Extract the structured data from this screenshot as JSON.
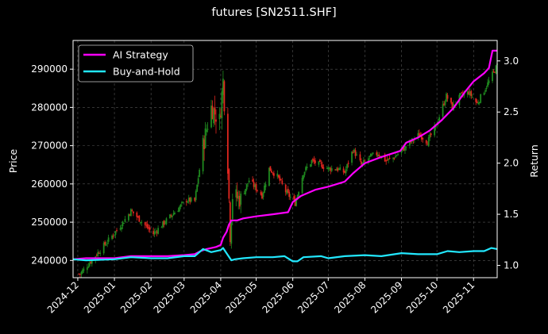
{
  "chart_data": {
    "type": "line",
    "title": "futures [SN2511.SHF]",
    "ylabel_left": "Price",
    "ylabel_right": "Return",
    "grid": true,
    "legend_position": "top-left",
    "x_start": "2024-11-27",
    "x_end": "2025-11-21",
    "ylim_left": [
      235500,
      297500
    ],
    "ylim_right": [
      0.88,
      3.2
    ],
    "xticks": [
      {
        "date": "2024-12-01",
        "label": "2024-12"
      },
      {
        "date": "2025-01-01",
        "label": "2025-01"
      },
      {
        "date": "2025-02-01",
        "label": "2025-02"
      },
      {
        "date": "2025-03-01",
        "label": "2025-03"
      },
      {
        "date": "2025-04-01",
        "label": "2025-04"
      },
      {
        "date": "2025-05-01",
        "label": "2025-05"
      },
      {
        "date": "2025-06-01",
        "label": "2025-06"
      },
      {
        "date": "2025-07-01",
        "label": "2025-07"
      },
      {
        "date": "2025-08-01",
        "label": "2025-08"
      },
      {
        "date": "2025-09-01",
        "label": "2025-09"
      },
      {
        "date": "2025-10-01",
        "label": "2025-10"
      },
      {
        "date": "2025-11-01",
        "label": "2025-11"
      }
    ],
    "yticks_left": [
      {
        "value": 240000,
        "label": "240000"
      },
      {
        "value": 250000,
        "label": "250000"
      },
      {
        "value": 260000,
        "label": "260000"
      },
      {
        "value": 270000,
        "label": "270000"
      },
      {
        "value": 280000,
        "label": "280000"
      },
      {
        "value": 290000,
        "label": "290000"
      }
    ],
    "yticks_right": [
      {
        "value": 1.0,
        "label": "1.0"
      },
      {
        "value": 1.5,
        "label": "1.5"
      },
      {
        "value": 2.0,
        "label": "2.0"
      },
      {
        "value": 2.5,
        "label": "2.5"
      },
      {
        "value": 3.0,
        "label": "3.0"
      }
    ],
    "candle_colors": {
      "up": "#1f8a1f",
      "down": "#e0261f"
    },
    "price_anchors": [
      [
        "2024-12-03",
        236500
      ],
      [
        "2025-01-06",
        249000
      ],
      [
        "2025-01-15",
        253000
      ],
      [
        "2025-02-03",
        247000
      ],
      [
        "2025-03-03",
        255800
      ],
      [
        "2025-03-10",
        255500
      ],
      [
        "2025-03-17",
        270000
      ],
      [
        "2025-03-24",
        280000
      ],
      [
        "2025-03-31",
        276500
      ],
      [
        "2025-04-03",
        287000
      ],
      [
        "2025-04-07",
        265000
      ],
      [
        "2025-04-09",
        247000
      ],
      [
        "2025-04-11",
        257000
      ],
      [
        "2025-04-18",
        256000
      ],
      [
        "2025-04-25",
        261000
      ],
      [
        "2025-05-06",
        257000
      ],
      [
        "2025-05-12",
        264000
      ],
      [
        "2025-05-19",
        262000
      ],
      [
        "2025-05-26",
        258000
      ],
      [
        "2025-06-03",
        255000
      ],
      [
        "2025-06-10",
        263000
      ],
      [
        "2025-06-17",
        266000
      ],
      [
        "2025-06-24",
        265000
      ],
      [
        "2025-07-01",
        264000
      ],
      [
        "2025-07-08",
        264000
      ],
      [
        "2025-07-15",
        263000
      ],
      [
        "2025-07-22",
        269000
      ],
      [
        "2025-07-29",
        265000
      ],
      [
        "2025-08-05",
        267000
      ],
      [
        "2025-08-12",
        268000
      ],
      [
        "2025-08-19",
        266000
      ],
      [
        "2025-08-26",
        267000
      ],
      [
        "2025-09-02",
        269000
      ],
      [
        "2025-09-09",
        271000
      ],
      [
        "2025-09-16",
        273000
      ],
      [
        "2025-09-23",
        271000
      ],
      [
        "2025-09-30",
        275000
      ],
      [
        "2025-10-09",
        283000
      ],
      [
        "2025-10-14",
        280000
      ],
      [
        "2025-10-21",
        283000
      ],
      [
        "2025-10-28",
        284000
      ],
      [
        "2025-11-04",
        281000
      ],
      [
        "2025-11-11",
        285000
      ],
      [
        "2025-11-21",
        291000
      ]
    ],
    "series": [
      {
        "name": "AI Strategy",
        "color": "#ff00ff",
        "points": [
          [
            "2024-11-27",
            1.06
          ],
          [
            "2024-12-08",
            1.07
          ],
          [
            "2025-01-01",
            1.07
          ],
          [
            "2025-01-15",
            1.09
          ],
          [
            "2025-02-15",
            1.09
          ],
          [
            "2025-03-01",
            1.1
          ],
          [
            "2025-03-10",
            1.11
          ],
          [
            "2025-03-15",
            1.14
          ],
          [
            "2025-03-20",
            1.16
          ],
          [
            "2025-03-28",
            1.18
          ],
          [
            "2025-04-01",
            1.2
          ],
          [
            "2025-04-03",
            1.27
          ],
          [
            "2025-04-06",
            1.33
          ],
          [
            "2025-04-08",
            1.4
          ],
          [
            "2025-04-10",
            1.44
          ],
          [
            "2025-04-15",
            1.44
          ],
          [
            "2025-04-20",
            1.46
          ],
          [
            "2025-05-01",
            1.48
          ],
          [
            "2025-05-15",
            1.5
          ],
          [
            "2025-05-28",
            1.52
          ],
          [
            "2025-06-01",
            1.62
          ],
          [
            "2025-06-08",
            1.68
          ],
          [
            "2025-06-20",
            1.74
          ],
          [
            "2025-07-01",
            1.77
          ],
          [
            "2025-07-15",
            1.82
          ],
          [
            "2025-07-22",
            1.9
          ],
          [
            "2025-08-01",
            2.0
          ],
          [
            "2025-08-15",
            2.06
          ],
          [
            "2025-08-31",
            2.12
          ],
          [
            "2025-09-05",
            2.2
          ],
          [
            "2025-09-15",
            2.25
          ],
          [
            "2025-09-25",
            2.32
          ],
          [
            "2025-10-05",
            2.42
          ],
          [
            "2025-10-15",
            2.54
          ],
          [
            "2025-10-25",
            2.7
          ],
          [
            "2025-11-01",
            2.8
          ],
          [
            "2025-11-10",
            2.88
          ],
          [
            "2025-11-14",
            2.93
          ],
          [
            "2025-11-17",
            3.1
          ],
          [
            "2025-11-21",
            3.1
          ]
        ]
      },
      {
        "name": "Buy-and-Hold",
        "color": "#22e8ff",
        "points": [
          [
            "2024-11-27",
            1.06
          ],
          [
            "2024-12-08",
            1.05
          ],
          [
            "2025-01-01",
            1.06
          ],
          [
            "2025-01-15",
            1.08
          ],
          [
            "2025-02-01",
            1.07
          ],
          [
            "2025-02-15",
            1.07
          ],
          [
            "2025-03-01",
            1.09
          ],
          [
            "2025-03-10",
            1.09
          ],
          [
            "2025-03-17",
            1.16
          ],
          [
            "2025-03-24",
            1.13
          ],
          [
            "2025-04-01",
            1.15
          ],
          [
            "2025-04-03",
            1.17
          ],
          [
            "2025-04-07",
            1.1
          ],
          [
            "2025-04-10",
            1.05
          ],
          [
            "2025-04-13",
            1.06
          ],
          [
            "2025-04-20",
            1.07
          ],
          [
            "2025-05-01",
            1.08
          ],
          [
            "2025-05-15",
            1.08
          ],
          [
            "2025-05-25",
            1.09
          ],
          [
            "2025-06-01",
            1.04
          ],
          [
            "2025-06-05",
            1.04
          ],
          [
            "2025-06-10",
            1.08
          ],
          [
            "2025-06-25",
            1.09
          ],
          [
            "2025-07-01",
            1.07
          ],
          [
            "2025-07-15",
            1.09
          ],
          [
            "2025-08-01",
            1.1
          ],
          [
            "2025-08-15",
            1.09
          ],
          [
            "2025-09-01",
            1.12
          ],
          [
            "2025-09-15",
            1.11
          ],
          [
            "2025-10-01",
            1.11
          ],
          [
            "2025-10-10",
            1.14
          ],
          [
            "2025-10-20",
            1.13
          ],
          [
            "2025-11-01",
            1.14
          ],
          [
            "2025-11-10",
            1.14
          ],
          [
            "2025-11-16",
            1.17
          ],
          [
            "2025-11-21",
            1.16
          ]
        ]
      }
    ]
  }
}
